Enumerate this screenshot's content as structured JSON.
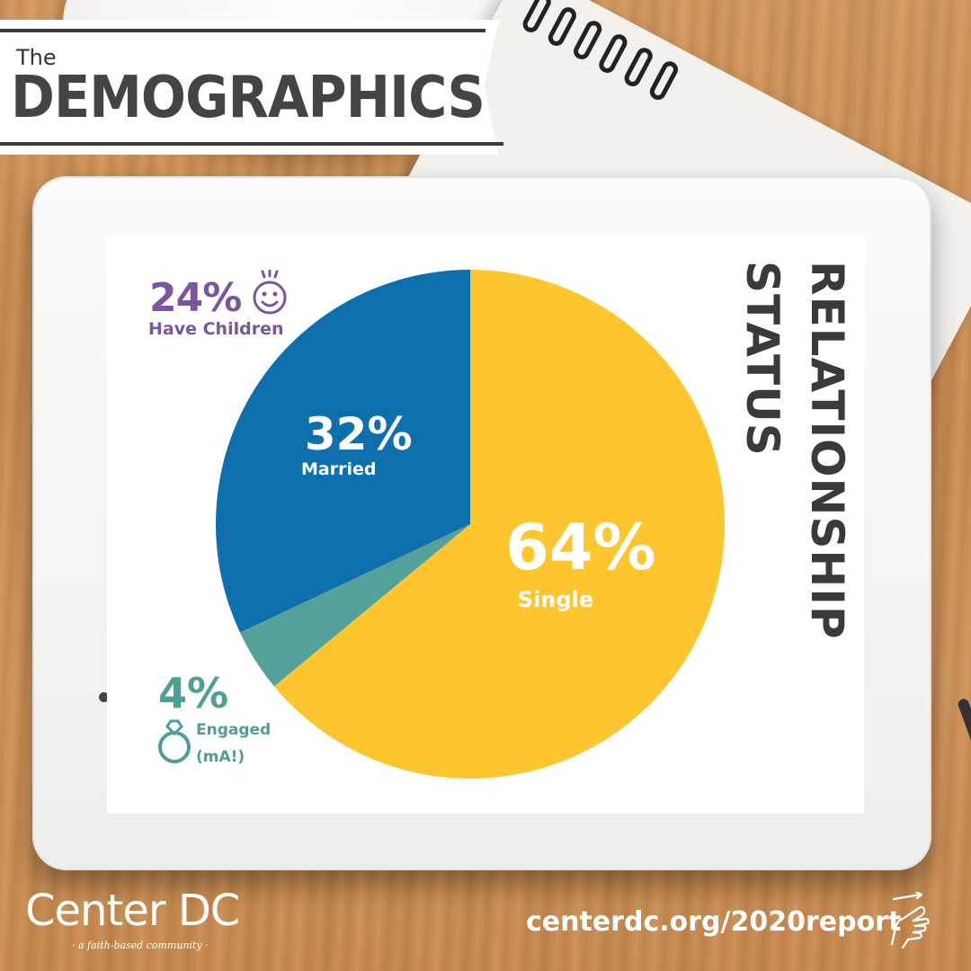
{
  "header": {
    "title_small": "The",
    "title_big": "DEMOGRAPHICS"
  },
  "chart_data": {
    "type": "pie",
    "title_lines": [
      "RELATIONSHIP",
      "STATUS"
    ],
    "slices": [
      {
        "label": "Single",
        "value": 64,
        "value_label": "64%",
        "color": "#fec62e"
      },
      {
        "label": "Engaged",
        "label_line2": "(mA!)",
        "value": 4,
        "value_label": "4%",
        "color": "#53a19a"
      },
      {
        "label": "Married",
        "value": 32,
        "value_label": "32%",
        "color": "#0d6fab"
      }
    ],
    "annotation": {
      "value": 24,
      "value_label": "24%",
      "label": "Have Children",
      "color": "#7b559e"
    }
  },
  "footer": {
    "brand": "Center DC",
    "tagline": "· a faith-based community ·",
    "link": "centerdc.org/2020report"
  },
  "icons": {
    "annotation_icon": "smiley-face-icon",
    "engaged_icon": "ring-icon",
    "link_icon": "pointing-hand-icon"
  }
}
